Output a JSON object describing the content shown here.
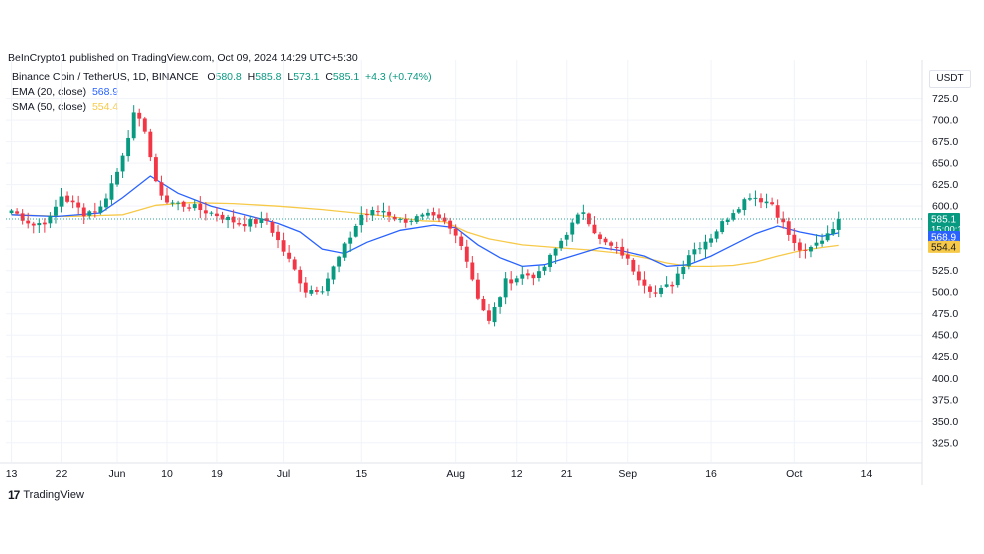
{
  "header": {
    "published": "BeInCrypto1 published on TradingView.com, Oct 09, 2024 14:29 UTC+5:30"
  },
  "legend": {
    "symbol": "Binance Coin / TetherUS, 1D, BINANCE",
    "open_label": "O",
    "open": "580.8",
    "high_label": "H",
    "high": "585.8",
    "low_label": "L",
    "low": "573.1",
    "close_label": "C",
    "close": "585.1",
    "change": "+4.3 (+0.74%)",
    "ema_label": "EMA (20, close)",
    "ema_value": "568.9",
    "sma_label": "SMA (50, close)",
    "sma_value": "554.4"
  },
  "currency": "USDT",
  "footer": {
    "logo_text": "TradingView",
    "logo_icon": "tradingview-logo-icon"
  },
  "colors": {
    "up": "#089981",
    "down": "#f23645",
    "ema": "#2962ff",
    "sma": "#f7c948",
    "grid": "#f0f3fa",
    "text": "#131722",
    "price_line": "#26a69a"
  },
  "chart_data": {
    "type": "candlestick",
    "ylim": [
      305,
      735
    ],
    "y_ticks": [
      "725.0",
      "700.0",
      "675.0",
      "650.0",
      "625.0",
      "600.0",
      "575.0",
      "550.0",
      "525.0",
      "500.0",
      "475.0",
      "450.0",
      "425.0",
      "400.0",
      "375.0",
      "350.0",
      "325.0"
    ],
    "x_ticks": [
      {
        "label": "13",
        "day": 0
      },
      {
        "label": "22",
        "day": 9
      },
      {
        "label": "Jun",
        "day": 19
      },
      {
        "label": "10",
        "day": 28
      },
      {
        "label": "19",
        "day": 37
      },
      {
        "label": "Jul",
        "day": 49
      },
      {
        "label": "15",
        "day": 63
      },
      {
        "label": "Aug",
        "day": 80
      },
      {
        "label": "12",
        "day": 91
      },
      {
        "label": "21",
        "day": 100
      },
      {
        "label": "Sep",
        "day": 111
      },
      {
        "label": "16",
        "day": 126
      },
      {
        "label": "Oct",
        "day": 141
      },
      {
        "label": "14",
        "day": 154
      }
    ],
    "x_range": [
      -1,
      164
    ],
    "price_labels": [
      {
        "value": 585.1,
        "text": "585.1",
        "sub": "15:00:12",
        "color": "#089981"
      },
      {
        "value": 568.9,
        "text": "568.9",
        "color": "#2962ff"
      },
      {
        "value": 554.4,
        "text": "554.4",
        "color": "#f7c948"
      }
    ],
    "last_close": 585.1,
    "ohlc_anchor_closes": [
      [
        0,
        595
      ],
      [
        4,
        578
      ],
      [
        7,
        585
      ],
      [
        9,
        612
      ],
      [
        13,
        592
      ],
      [
        16,
        598
      ],
      [
        19,
        640
      ],
      [
        22,
        705
      ],
      [
        24,
        690
      ],
      [
        26,
        625
      ],
      [
        28,
        605
      ],
      [
        32,
        600
      ],
      [
        37,
        590
      ],
      [
        41,
        580
      ],
      [
        46,
        583
      ],
      [
        49,
        548
      ],
      [
        53,
        502
      ],
      [
        56,
        505
      ],
      [
        59,
        540
      ],
      [
        63,
        590
      ],
      [
        67,
        595
      ],
      [
        70,
        583
      ],
      [
        75,
        588
      ],
      [
        78,
        580
      ],
      [
        81,
        558
      ],
      [
        84,
        495
      ],
      [
        86,
        465
      ],
      [
        89,
        512
      ],
      [
        92,
        520
      ],
      [
        95,
        520
      ],
      [
        100,
        570
      ],
      [
        103,
        595
      ],
      [
        106,
        560
      ],
      [
        110,
        545
      ],
      [
        113,
        518
      ],
      [
        116,
        498
      ],
      [
        119,
        510
      ],
      [
        122,
        545
      ],
      [
        126,
        565
      ],
      [
        130,
        595
      ],
      [
        133,
        613
      ],
      [
        137,
        603
      ],
      [
        141,
        555
      ],
      [
        143,
        545
      ],
      [
        146,
        562
      ],
      [
        149,
        585
      ]
    ],
    "ema": [
      [
        0,
        590
      ],
      [
        8,
        588
      ],
      [
        16,
        592
      ],
      [
        20,
        610
      ],
      [
        25,
        635
      ],
      [
        30,
        615
      ],
      [
        36,
        600
      ],
      [
        42,
        590
      ],
      [
        48,
        580
      ],
      [
        52,
        570
      ],
      [
        56,
        550
      ],
      [
        60,
        545
      ],
      [
        64,
        558
      ],
      [
        70,
        572
      ],
      [
        76,
        578
      ],
      [
        80,
        575
      ],
      [
        84,
        555
      ],
      [
        88,
        540
      ],
      [
        92,
        530
      ],
      [
        96,
        532
      ],
      [
        100,
        540
      ],
      [
        106,
        552
      ],
      [
        110,
        548
      ],
      [
        114,
        542
      ],
      [
        118,
        530
      ],
      [
        122,
        532
      ],
      [
        126,
        542
      ],
      [
        130,
        555
      ],
      [
        134,
        568
      ],
      [
        138,
        577
      ],
      [
        142,
        570
      ],
      [
        146,
        565
      ],
      [
        149,
        568.9
      ]
    ],
    "sma": [
      [
        0,
        590
      ],
      [
        10,
        588
      ],
      [
        20,
        590
      ],
      [
        26,
        601
      ],
      [
        32,
        604
      ],
      [
        40,
        603
      ],
      [
        48,
        600
      ],
      [
        56,
        596
      ],
      [
        62,
        592
      ],
      [
        68,
        588
      ],
      [
        74,
        583
      ],
      [
        78,
        582
      ],
      [
        82,
        570
      ],
      [
        86,
        562
      ],
      [
        92,
        555
      ],
      [
        98,
        552
      ],
      [
        104,
        549
      ],
      [
        110,
        545
      ],
      [
        114,
        540
      ],
      [
        118,
        534
      ],
      [
        122,
        530
      ],
      [
        126,
        530
      ],
      [
        130,
        531
      ],
      [
        134,
        535
      ],
      [
        138,
        542
      ],
      [
        142,
        548
      ],
      [
        146,
        552
      ],
      [
        149,
        554.4
      ]
    ]
  }
}
